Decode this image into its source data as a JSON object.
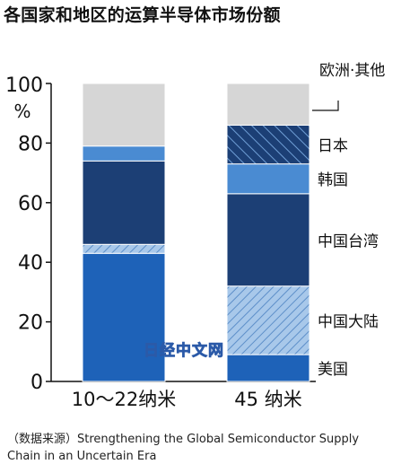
{
  "chart_data": {
    "type": "bar",
    "stacked": true,
    "title": "各国家和地区的运算半导体市场份额",
    "yunit": "%",
    "ylim": [
      0,
      100
    ],
    "yticks": [
      0,
      20,
      40,
      60,
      80,
      100
    ],
    "categories": [
      "10～22纳米",
      "45 纳米"
    ],
    "series": [
      {
        "name": "美国",
        "values": [
          43,
          9
        ],
        "color": "#1e62b8",
        "pattern": "none"
      },
      {
        "name": "中国大陆",
        "values": [
          3,
          23
        ],
        "color": "#9cc0e6",
        "pattern": "hatch-light"
      },
      {
        "name": "中国台湾",
        "values": [
          28,
          31
        ],
        "color": "#1c3f75",
        "pattern": "none"
      },
      {
        "name": "韩国",
        "values": [
          0,
          0
        ],
        "color": "#1c3f75",
        "pattern": "none"
      },
      {
        "name": "韩国",
        "values": [
          5,
          10
        ],
        "color": "#4a8bd2",
        "pattern": "none"
      },
      {
        "name": "日本",
        "values": [
          0,
          13
        ],
        "color": "#1c3f75",
        "pattern": "hatch-dark"
      },
      {
        "name": "欧洲·其他",
        "values": [
          21,
          14
        ],
        "color": "#d6d6d6",
        "pattern": "none"
      }
    ],
    "legend_placement": "right, labels beside segments"
  },
  "watermark": "日经中文网",
  "source_note": "（数据来源）Strengthening the Global Semiconductor Supply Chain in an Uncertain Era"
}
